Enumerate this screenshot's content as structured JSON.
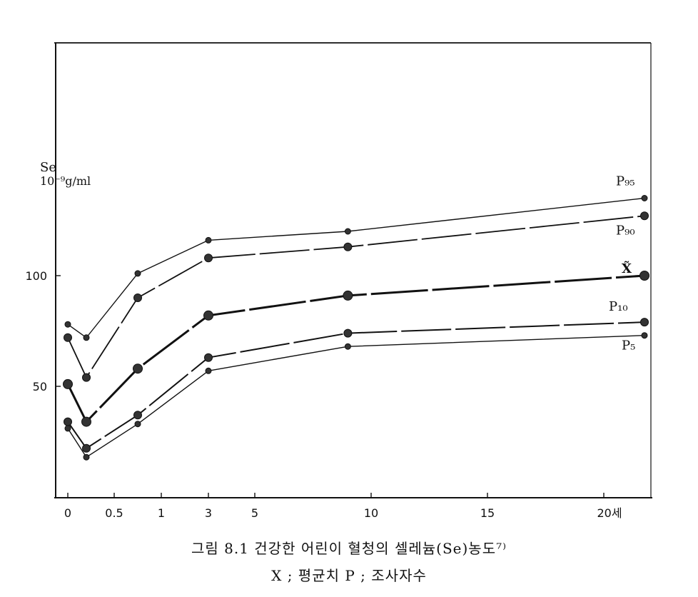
{
  "chart_data": {
    "type": "line",
    "title": "그림 8.1  건강한 어린이 혈청의 셀레늄(Se)농도⁷⁾",
    "subtitle": "X ; 평균치   P ; 조사자수",
    "ylabel_line1": "Se",
    "ylabel_line2": "10⁻⁹g/ml",
    "x_tick_labels": [
      "0",
      "0.5",
      "1",
      "3",
      "5",
      "10",
      "15",
      "20세"
    ],
    "y_tick_labels": [
      "50",
      "100"
    ],
    "ylim": [
      0,
      140
    ],
    "grid": false,
    "x": [
      "0",
      "0.2",
      "0.75",
      "3",
      "9",
      "22"
    ],
    "series": [
      {
        "name": "P₉₅",
        "values": [
          78,
          72,
          101,
          116,
          120,
          135
        ]
      },
      {
        "name": "P₉₀",
        "values": [
          72,
          54,
          90,
          108,
          113,
          127
        ]
      },
      {
        "name": "X̃",
        "values": [
          51,
          34,
          58,
          82,
          91,
          100
        ]
      },
      {
        "name": "P₁₀",
        "values": [
          34,
          22,
          37,
          63,
          74,
          79
        ]
      },
      {
        "name": "P₅",
        "values": [
          31,
          18,
          33,
          57,
          68,
          73
        ]
      }
    ]
  },
  "colors": {
    "ink": "#111111",
    "background": "#ffffff"
  }
}
